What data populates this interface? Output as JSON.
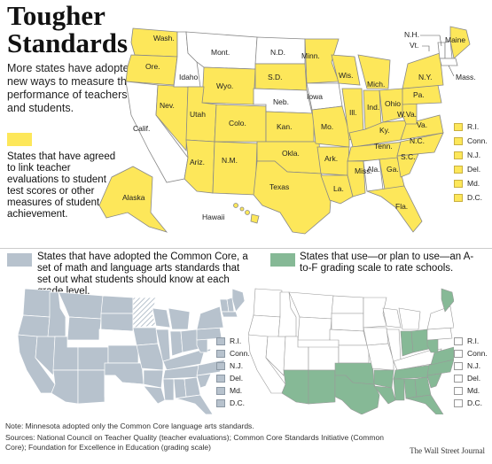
{
  "title_line1": "Tougher",
  "title_line2": "Standards",
  "subtitle": "More states have adopted new ways to measure the performance of teachers and students.",
  "colors": {
    "yellow": "#fde75a",
    "gray": "#b7c2cd",
    "green": "#86b996",
    "white": "#ffffff",
    "outline": "#888888"
  },
  "legend_teacher": "States that have agreed to link teacher evaluations to student test scores or other measures of student achievement.",
  "legend_core": "States that have adopted the Common Core, a set of math and language arts standards that set out what students should know at each grade level.",
  "legend_grade": "States that use—or plan to use—an A-to-F grading scale to rate schools.",
  "labels": {
    "wash": "Wash.",
    "ore": "Ore.",
    "calif": "Calif.",
    "nev": "Nev.",
    "idaho": "Idaho",
    "mont": "Mont.",
    "wyo": "Wyo.",
    "utah": "Utah",
    "ariz": "Ariz.",
    "colo": "Colo.",
    "nm": "N.M.",
    "nd": "N.D.",
    "sd": "S.D.",
    "neb": "Neb.",
    "kan": "Kan.",
    "okla": "Okla.",
    "texas": "Texas",
    "minn": "Minn.",
    "iowa": "Iowa",
    "mo": "Mo.",
    "ark": "Ark.",
    "la": "La.",
    "wis": "Wis.",
    "ill": "Ill.",
    "mich": "Mich.",
    "ind": "Ind.",
    "ohio": "Ohio",
    "ky": "Ky.",
    "tenn": "Tenn.",
    "miss": "Miss.",
    "ala": "Ala.",
    "ga": "Ga.",
    "fla": "Fla.",
    "sc": "S.C.",
    "nc": "N.C.",
    "va": "Va.",
    "wva": "W.Va.",
    "pa": "Pa.",
    "ny": "N.Y.",
    "maine": "Maine",
    "nh": "N.H.",
    "vt": "Vt.",
    "mass": "Mass.",
    "alaska": "Alaska",
    "hawaii": "Hawaii"
  },
  "ne_states": [
    "R.I.",
    "Conn.",
    "N.J.",
    "Del.",
    "Md.",
    "D.C."
  ],
  "note": "Note: Minnesota adopted only the Common Core language arts standards.",
  "sources": "Sources: National Council on Teacher Quality (teacher evaluations); Common Core Standards Initiative (Common Core); Foundation for Excellence in Education (grading scale)",
  "credit": "The Wall Street Journal"
}
